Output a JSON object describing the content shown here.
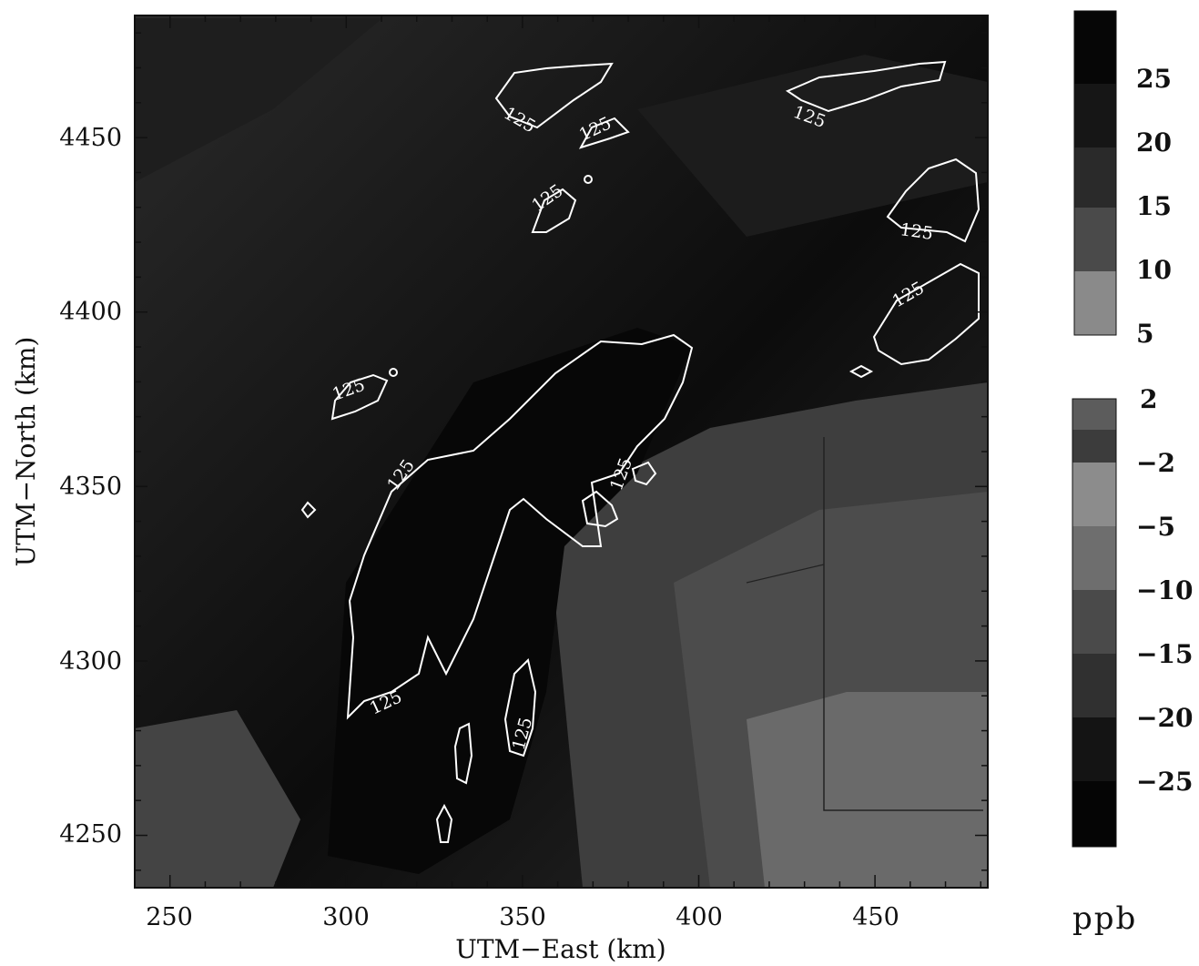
{
  "map": {
    "x_axis_title": "UTM−East (km)",
    "y_axis_title": "UTM−North (km)",
    "x_ticks": [
      "250",
      "300",
      "350",
      "400",
      "450"
    ],
    "y_ticks": [
      "4450",
      "4400",
      "4350",
      "4300",
      "4250"
    ],
    "x_range_km": [
      240,
      482
    ],
    "y_range_km": [
      4235,
      4485
    ],
    "contour_value_label": "125",
    "contour_color": "#ffffff"
  },
  "colorbar_positive": {
    "labels": [
      "25",
      "20",
      "15",
      "10",
      "5"
    ],
    "bands": [
      "#060606",
      "#161616",
      "#2a2a2a",
      "#4a4a4a",
      "#8a8a8a"
    ]
  },
  "colorbar_negative": {
    "labels": [
      "2",
      "−2",
      "−5",
      "−10",
      "−15",
      "−20",
      "−25"
    ],
    "bands": [
      "#5c5c5c",
      "#3c3c3c",
      "#8c8c8c",
      "#6e6e6e",
      "#4a4a4a",
      "#303030",
      "#141414",
      "#050505"
    ]
  },
  "unit": "ppb",
  "colors": {
    "background_dark": "#0a0a0a",
    "background_mid": "#3a3a3a",
    "background_light": "#6a6a6a"
  }
}
